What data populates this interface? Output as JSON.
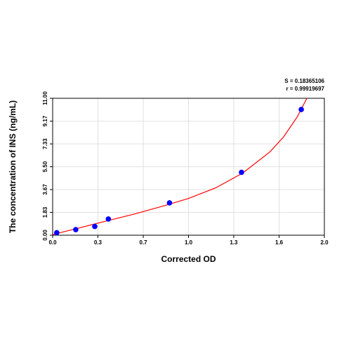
{
  "chart_data": {
    "type": "scatter",
    "title": "",
    "xlabel": "Corrected OD",
    "ylabel": "The concentration of INS (ng/mL)",
    "xlim": [
      0.0,
      2.0
    ],
    "ylim": [
      0.0,
      11.0
    ],
    "x_ticks": [
      "0.0",
      "0.3",
      "0.7",
      "1.0",
      "1.3",
      "1.6",
      "2.0"
    ],
    "x_tick_values": [
      0.0,
      0.333,
      0.667,
      1.0,
      1.333,
      1.667,
      2.0
    ],
    "y_ticks": [
      "0.00",
      "1.83",
      "3.67",
      "5.50",
      "7.33",
      "9.17",
      "11.00"
    ],
    "y_tick_values": [
      0.0,
      1.833,
      3.667,
      5.5,
      7.333,
      9.167,
      11.0
    ],
    "grid": true,
    "series": [
      {
        "values": [
          {
            "x": 0.03,
            "y": 0.2
          },
          {
            "x": 0.17,
            "y": 0.45
          },
          {
            "x": 0.31,
            "y": 0.7
          },
          {
            "x": 0.41,
            "y": 1.3
          },
          {
            "x": 0.86,
            "y": 2.6
          },
          {
            "x": 1.39,
            "y": 5.05
          },
          {
            "x": 1.83,
            "y": 10.1
          }
        ],
        "color": "#0000ff"
      }
    ],
    "fit_curve": {
      "color": "#ff0000",
      "points": [
        {
          "x": 0.0,
          "y": 0.05
        },
        {
          "x": 0.2,
          "y": 0.6
        },
        {
          "x": 0.4,
          "y": 1.15
        },
        {
          "x": 0.6,
          "y": 1.7
        },
        {
          "x": 0.8,
          "y": 2.3
        },
        {
          "x": 1.0,
          "y": 2.95
        },
        {
          "x": 1.2,
          "y": 3.8
        },
        {
          "x": 1.4,
          "y": 5.0
        },
        {
          "x": 1.6,
          "y": 6.7
        },
        {
          "x": 1.7,
          "y": 7.9
        },
        {
          "x": 1.8,
          "y": 9.5
        },
        {
          "x": 1.9,
          "y": 11.6
        }
      ]
    },
    "stats": {
      "s": "S = 0.18365106",
      "r": "r = 0.99919697"
    }
  }
}
